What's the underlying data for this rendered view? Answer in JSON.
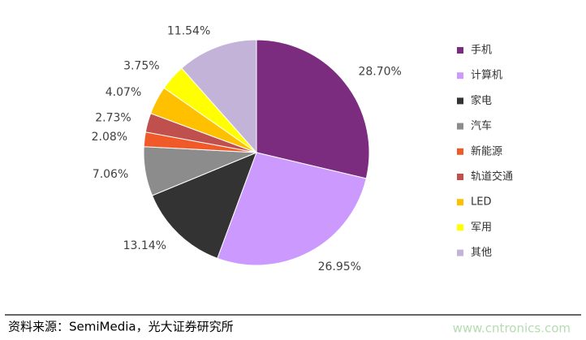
{
  "chart_data": {
    "type": "pie",
    "categories": [
      "手机",
      "计算机",
      "家电",
      "汽车",
      "新能源",
      "轨道交通",
      "LED",
      "军用",
      "其他"
    ],
    "values": [
      28.7,
      26.95,
      13.14,
      7.06,
      2.08,
      2.73,
      4.07,
      3.75,
      11.54
    ],
    "value_labels": [
      "28.70%",
      "26.95%",
      "13.14%",
      "7.06%",
      "2.08%",
      "2.73%",
      "4.07%",
      "3.75%",
      "11.54%"
    ],
    "colors": [
      "#7b2c7e",
      "#cc99ff",
      "#333333",
      "#8c8c8c",
      "#f05a28",
      "#c0504d",
      "#ffc000",
      "#ffff00",
      "#c3b3d8"
    ],
    "legend": "right",
    "source": "资料来源：SemiMedia，光大证券研究所",
    "watermark": "www.cntronics.com"
  }
}
